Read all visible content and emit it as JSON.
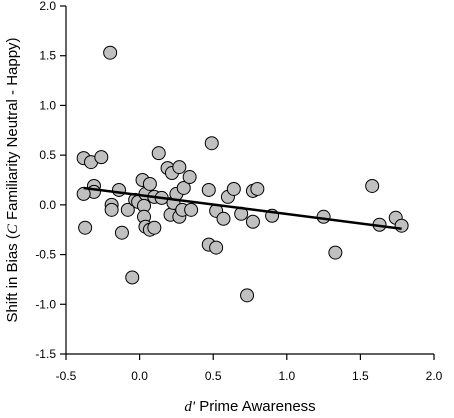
{
  "chart_data": {
    "type": "scatter",
    "title": "",
    "xlabel_var": "d'",
    "xlabel_rest": " Prime Awareness",
    "ylabel_start": "Shift in Bias (",
    "ylabel_var": "C",
    "ylabel_end": " Familiarity Neutral - Happy)",
    "xlim": [
      -0.5,
      2.0
    ],
    "ylim": [
      -1.5,
      2.0
    ],
    "xticks": [
      "-0.5",
      "0.0",
      "0.5",
      "1.0",
      "1.5",
      "2.0"
    ],
    "yticks": [
      "-1.5",
      "-1.0",
      "-0.5",
      "0.0",
      "0.5",
      "1.0",
      "1.5",
      "2.0"
    ],
    "grid": false,
    "legend": "none",
    "marker_fill": "#c0c0c0",
    "marker_edge": "#000000",
    "line_color": "#000000",
    "trend_line": {
      "x": [
        -0.38,
        1.78
      ],
      "y": [
        0.17,
        -0.24
      ]
    },
    "points": [
      {
        "x": -0.2,
        "y": 1.53
      },
      {
        "x": -0.38,
        "y": 0.47
      },
      {
        "x": -0.33,
        "y": 0.43
      },
      {
        "x": -0.26,
        "y": 0.48
      },
      {
        "x": -0.31,
        "y": 0.19
      },
      {
        "x": -0.31,
        "y": 0.13
      },
      {
        "x": -0.38,
        "y": 0.11
      },
      {
        "x": -0.37,
        "y": -0.23
      },
      {
        "x": -0.19,
        "y": 0.0
      },
      {
        "x": -0.19,
        "y": -0.05
      },
      {
        "x": -0.14,
        "y": 0.15
      },
      {
        "x": -0.12,
        "y": -0.28
      },
      {
        "x": -0.08,
        "y": -0.05
      },
      {
        "x": -0.05,
        "y": -0.73
      },
      {
        "x": -0.03,
        "y": 0.05
      },
      {
        "x": -0.01,
        "y": 0.03
      },
      {
        "x": 0.02,
        "y": 0.25
      },
      {
        "x": 0.04,
        "y": 0.11
      },
      {
        "x": 0.03,
        "y": -0.01
      },
      {
        "x": 0.07,
        "y": 0.21
      },
      {
        "x": 0.03,
        "y": -0.12
      },
      {
        "x": 0.04,
        "y": -0.22
      },
      {
        "x": 0.07,
        "y": -0.25
      },
      {
        "x": 0.1,
        "y": 0.08
      },
      {
        "x": 0.1,
        "y": -0.23
      },
      {
        "x": 0.13,
        "y": 0.52
      },
      {
        "x": 0.15,
        "y": 0.07
      },
      {
        "x": 0.19,
        "y": 0.37
      },
      {
        "x": 0.22,
        "y": 0.32
      },
      {
        "x": 0.21,
        "y": -0.1
      },
      {
        "x": 0.23,
        "y": 0.02
      },
      {
        "x": 0.25,
        "y": 0.11
      },
      {
        "x": 0.27,
        "y": 0.38
      },
      {
        "x": 0.27,
        "y": -0.12
      },
      {
        "x": 0.29,
        "y": -0.05
      },
      {
        "x": 0.3,
        "y": 0.17
      },
      {
        "x": 0.34,
        "y": 0.28
      },
      {
        "x": 0.35,
        "y": -0.05
      },
      {
        "x": 0.47,
        "y": 0.15
      },
      {
        "x": 0.49,
        "y": 0.62
      },
      {
        "x": 0.52,
        "y": -0.06
      },
      {
        "x": 0.57,
        "y": -0.14
      },
      {
        "x": 0.6,
        "y": 0.08
      },
      {
        "x": 0.64,
        "y": 0.16
      },
      {
        "x": 0.47,
        "y": -0.4
      },
      {
        "x": 0.52,
        "y": -0.43
      },
      {
        "x": 0.69,
        "y": -0.09
      },
      {
        "x": 0.73,
        "y": -0.91
      },
      {
        "x": 0.77,
        "y": -0.17
      },
      {
        "x": 0.77,
        "y": 0.14
      },
      {
        "x": 0.8,
        "y": 0.16
      },
      {
        "x": 0.9,
        "y": -0.11
      },
      {
        "x": 1.25,
        "y": -0.12
      },
      {
        "x": 1.33,
        "y": -0.48
      },
      {
        "x": 1.58,
        "y": 0.19
      },
      {
        "x": 1.63,
        "y": -0.2
      },
      {
        "x": 1.74,
        "y": -0.13
      },
      {
        "x": 1.78,
        "y": -0.21
      }
    ]
  }
}
